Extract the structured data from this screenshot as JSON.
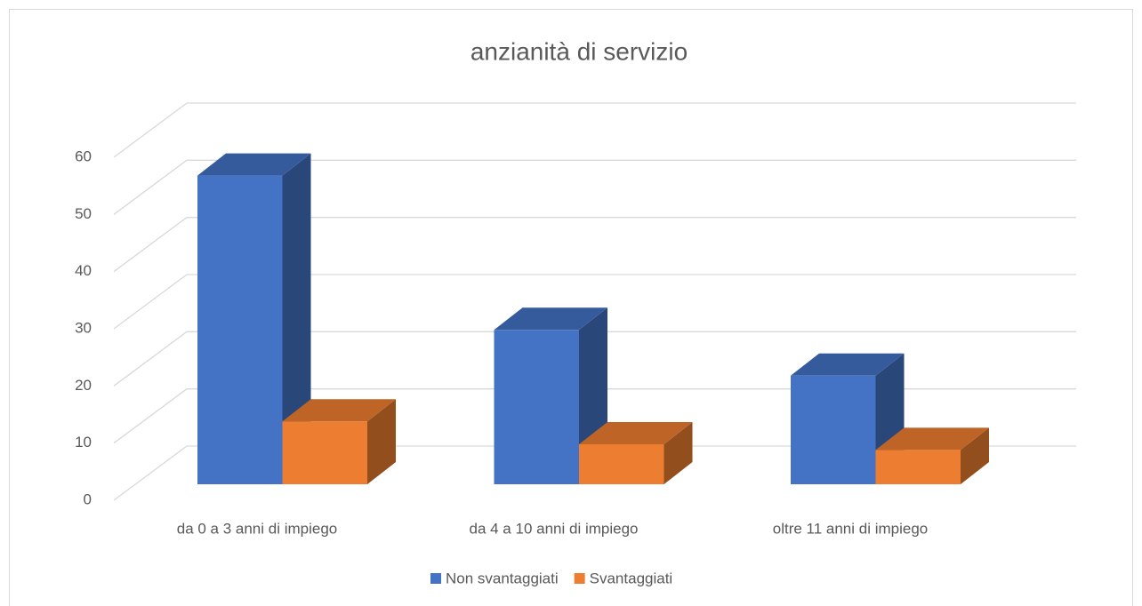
{
  "chart_data": {
    "type": "bar3d",
    "title": "anzianità di servizio",
    "categories": [
      "da 0 a 3 anni di impiego",
      "da 4 a 10 anni di impiego",
      "oltre 11 anni di impiego"
    ],
    "series": [
      {
        "name": "Non svantaggiati",
        "color": "#4472c4",
        "values": [
          54,
          27,
          19
        ]
      },
      {
        "name": "Svantaggiati",
        "color": "#ed7d31",
        "values": [
          11,
          7,
          6
        ]
      }
    ],
    "ylim": [
      0,
      60
    ],
    "yticks": [
      0,
      10,
      20,
      30,
      40,
      50,
      60
    ],
    "grid": true,
    "legend": "bottom"
  }
}
